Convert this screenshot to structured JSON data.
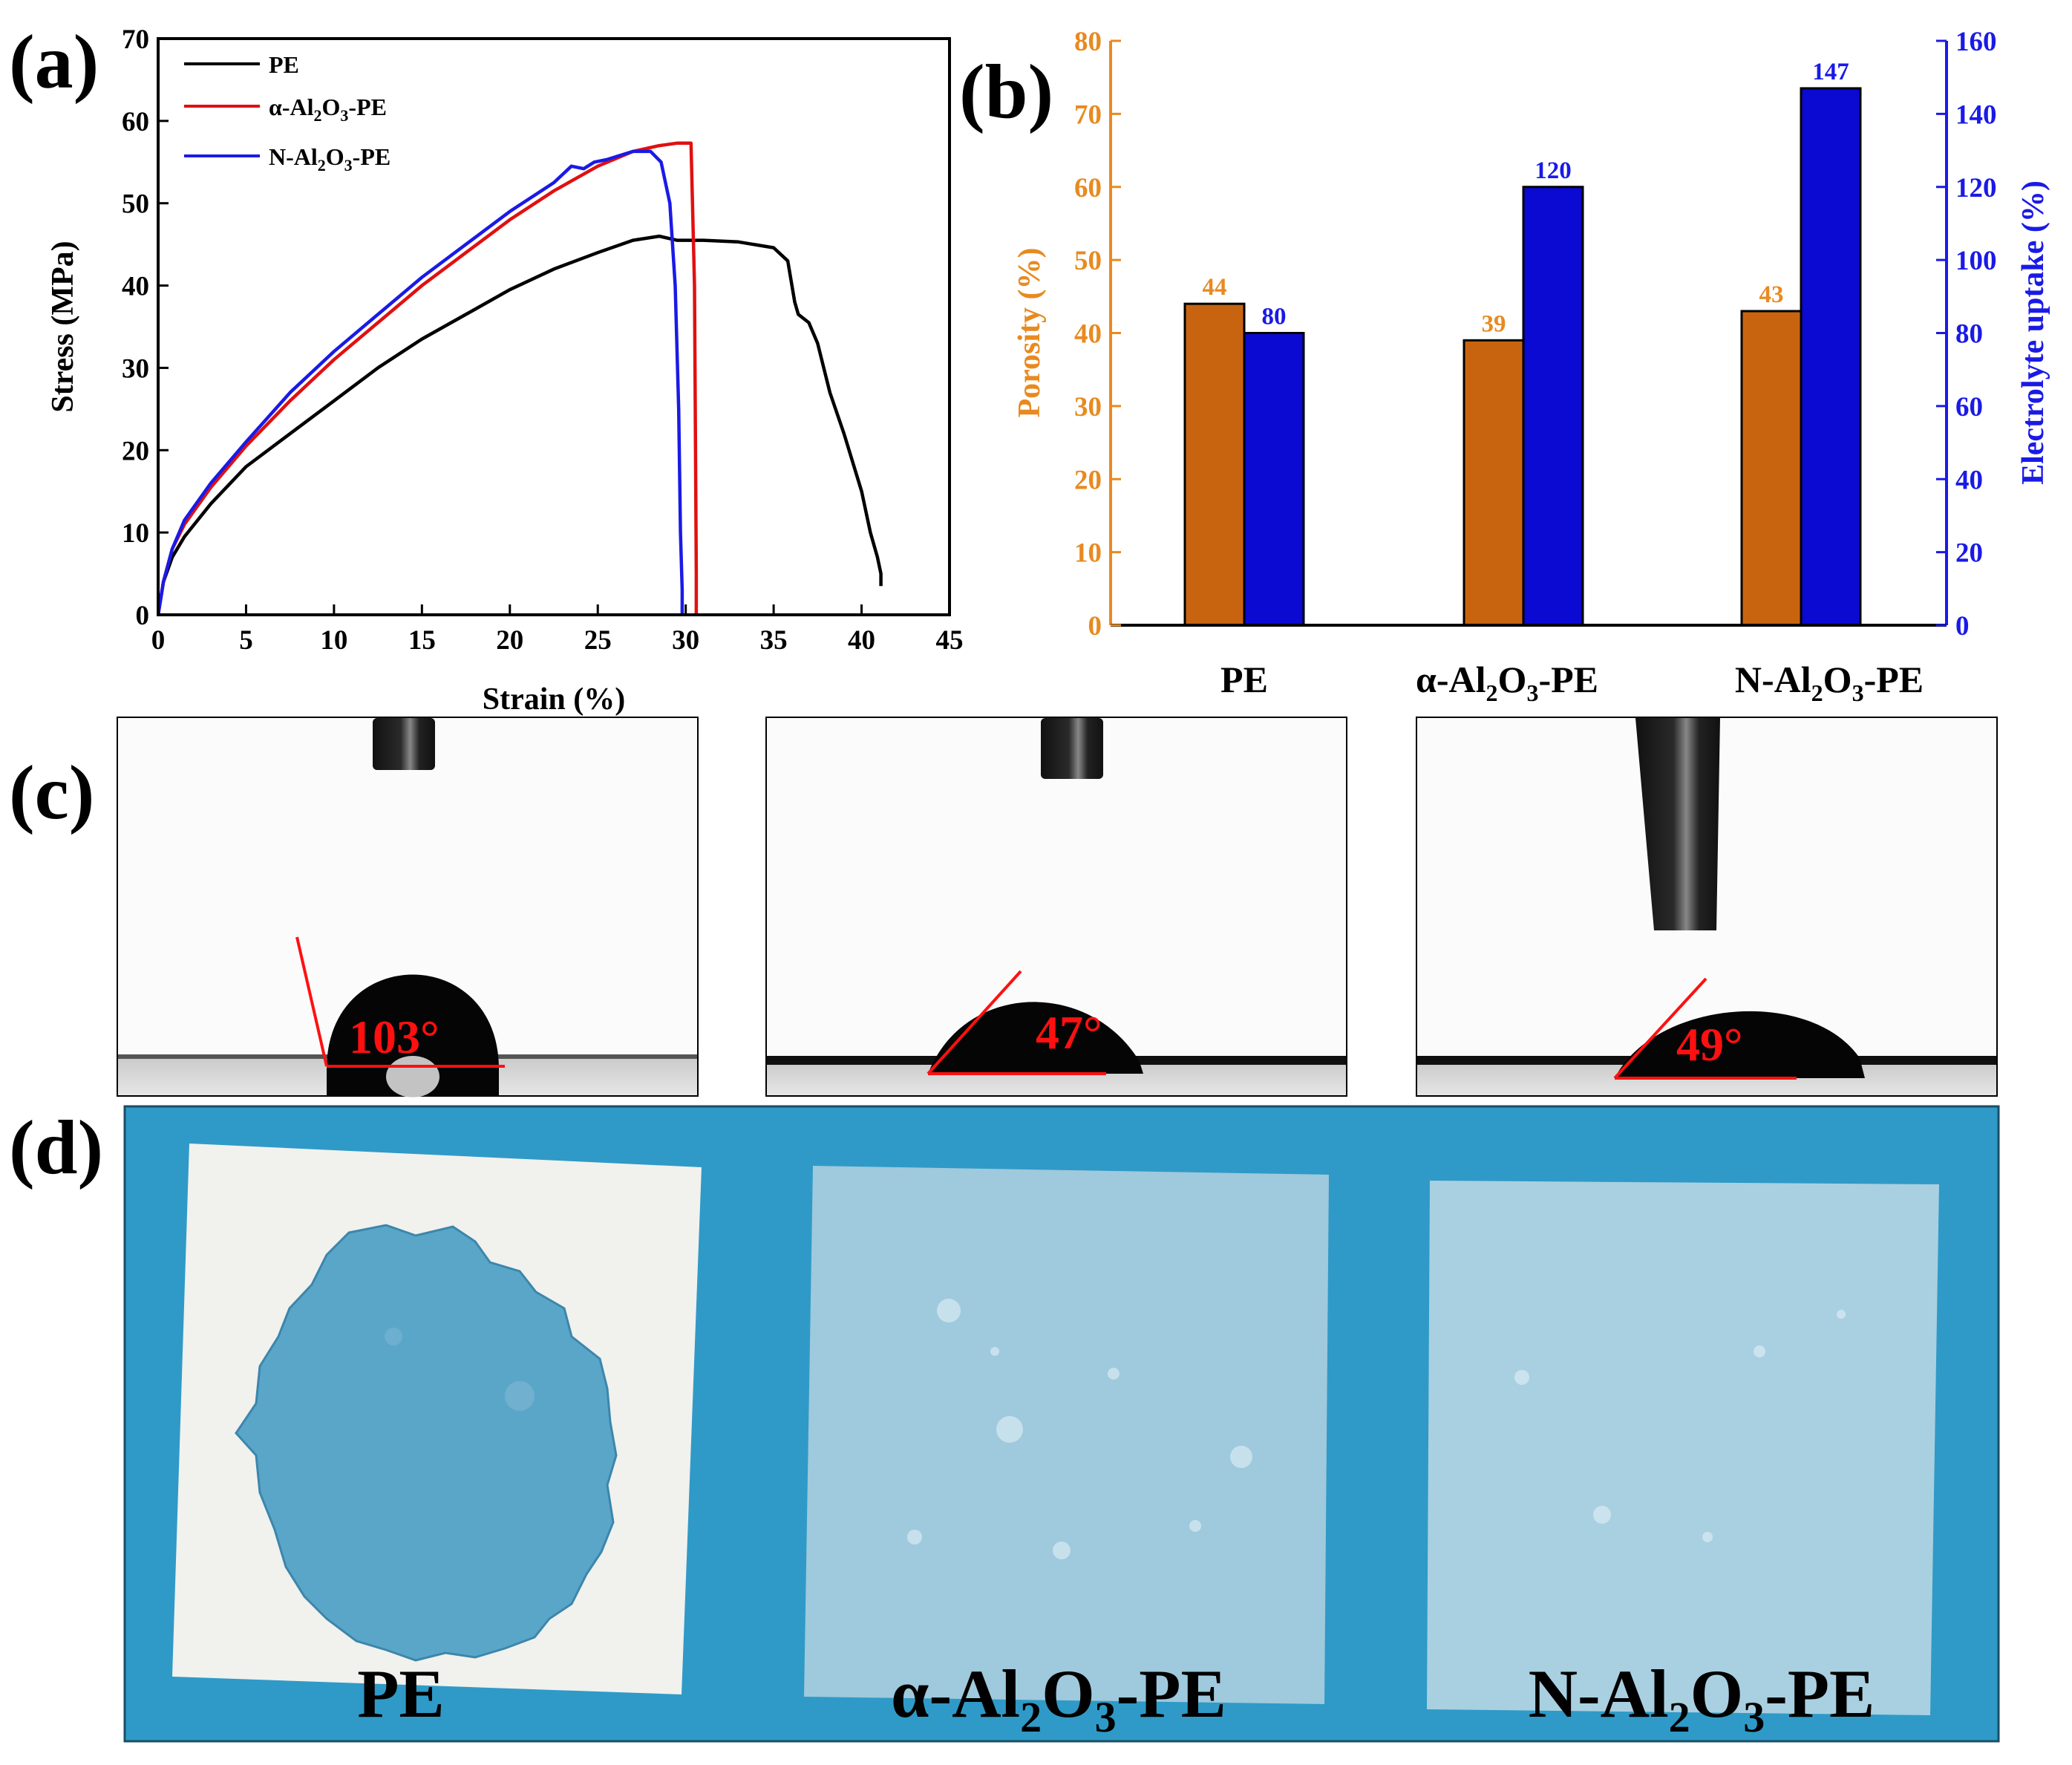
{
  "panel_labels": [
    "(a)",
    "(b)",
    "(c)",
    "(d)"
  ],
  "colors": {
    "PE": "#000000",
    "alpha": "#e01010",
    "N": "#1a1ae6",
    "porosity_bar": "#c86410",
    "uptake_bar": "#0a0ad2",
    "porosity_axis": "#e88a20",
    "uptake_axis": "#1a1ae6",
    "photo_bg": "#2f9ac7",
    "angle_red": "#ff1010"
  },
  "sample_names": {
    "pe": "PE",
    "alpha_prefix": "α-Al",
    "n_prefix": "N-Al",
    "sub2": "2",
    "o": "O",
    "sub3": "3",
    "suffix": "-PE"
  },
  "chart_data": [
    {
      "type": "line",
      "panel": "(a)",
      "title": "",
      "xlabel": "Strain (%)",
      "ylabel": "Stress (MPa)",
      "xlim": [
        0,
        45
      ],
      "ylim": [
        0,
        70
      ],
      "xticks": [
        0,
        5,
        10,
        15,
        20,
        25,
        30,
        35,
        40,
        45
      ],
      "yticks": [
        0,
        10,
        20,
        30,
        40,
        50,
        60,
        70
      ],
      "legend_position": "top-left",
      "series": [
        {
          "name": "PE",
          "key": "PE",
          "x": [
            0,
            0.3,
            0.8,
            1.5,
            3,
            5,
            7.5,
            10,
            12.5,
            15,
            17.5,
            20,
            22.5,
            25,
            27,
            28.5,
            29.5,
            31,
            33,
            35,
            35.8,
            36.2,
            36.4,
            37,
            37.5,
            38.2,
            39,
            40,
            40.5,
            40.9,
            41.1,
            41.1
          ],
          "y": [
            0,
            4,
            7,
            9.5,
            13.5,
            18,
            22,
            26,
            30,
            33.5,
            36.5,
            39.5,
            42,
            44,
            45.5,
            46,
            45.5,
            45.5,
            45.3,
            44.6,
            43,
            38,
            36.5,
            35.5,
            33,
            27,
            22,
            15,
            10,
            7,
            5,
            3.5
          ]
        },
        {
          "name": "α-Al2O3-PE",
          "key": "alpha",
          "x": [
            0,
            0.3,
            0.8,
            1.5,
            3,
            5,
            7.5,
            10,
            12.5,
            15,
            17.5,
            20,
            22.5,
            25,
            27,
            28.5,
            29.5,
            30.3,
            30.5,
            30.6,
            30.6
          ],
          "y": [
            0,
            4,
            8,
            11,
            15.5,
            20.5,
            26,
            31,
            35.5,
            40,
            44,
            48,
            51.5,
            54.5,
            56.3,
            57,
            57.3,
            57.3,
            40,
            5,
            0
          ]
        },
        {
          "name": "N-Al2O3-PE",
          "key": "N",
          "x": [
            0,
            0.3,
            0.8,
            1.5,
            3,
            5,
            7.5,
            10,
            12.5,
            15,
            17.5,
            20,
            22.5,
            23.5,
            24.2,
            24.8,
            25.5,
            27,
            28,
            28.6,
            29.1,
            29.4,
            29.6,
            29.7,
            29.8,
            29.8
          ],
          "y": [
            0,
            4,
            8,
            11.5,
            16,
            21,
            27,
            32,
            36.5,
            41,
            45,
            49,
            52.5,
            54.5,
            54.2,
            55,
            55.3,
            56.3,
            56.3,
            55,
            50,
            40,
            25,
            10,
            3,
            0
          ]
        }
      ]
    },
    {
      "type": "bar",
      "panel": "(b)",
      "title": "",
      "categories": [
        "PE",
        "α-Al2O3-PE",
        "N-Al2O3-PE"
      ],
      "ylabel_left": "Porosity (%)",
      "ylabel_right": "Electrolyte uptake (%)",
      "ylim_left": [
        0,
        80
      ],
      "ylim_right": [
        0,
        160
      ],
      "yticks_left": [
        0,
        10,
        20,
        30,
        40,
        50,
        60,
        70,
        80
      ],
      "yticks_right": [
        0,
        20,
        40,
        60,
        80,
        100,
        120,
        140,
        160
      ],
      "series": [
        {
          "name": "Porosity",
          "axis": "left",
          "values": [
            44,
            39,
            43
          ],
          "labels": [
            "44",
            "39",
            "43"
          ]
        },
        {
          "name": "Electrolyte uptake",
          "axis": "right",
          "values": [
            80,
            120,
            147
          ],
          "labels": [
            "80",
            "120",
            "147"
          ]
        }
      ]
    }
  ],
  "contact_angles": [
    {
      "sample": "PE",
      "angle": 103,
      "label": "103°"
    },
    {
      "sample": "α-Al2O3-PE",
      "angle": 47,
      "label": "47°"
    },
    {
      "sample": "N-Al2O3-PE",
      "angle": 49,
      "label": "49°"
    }
  ]
}
